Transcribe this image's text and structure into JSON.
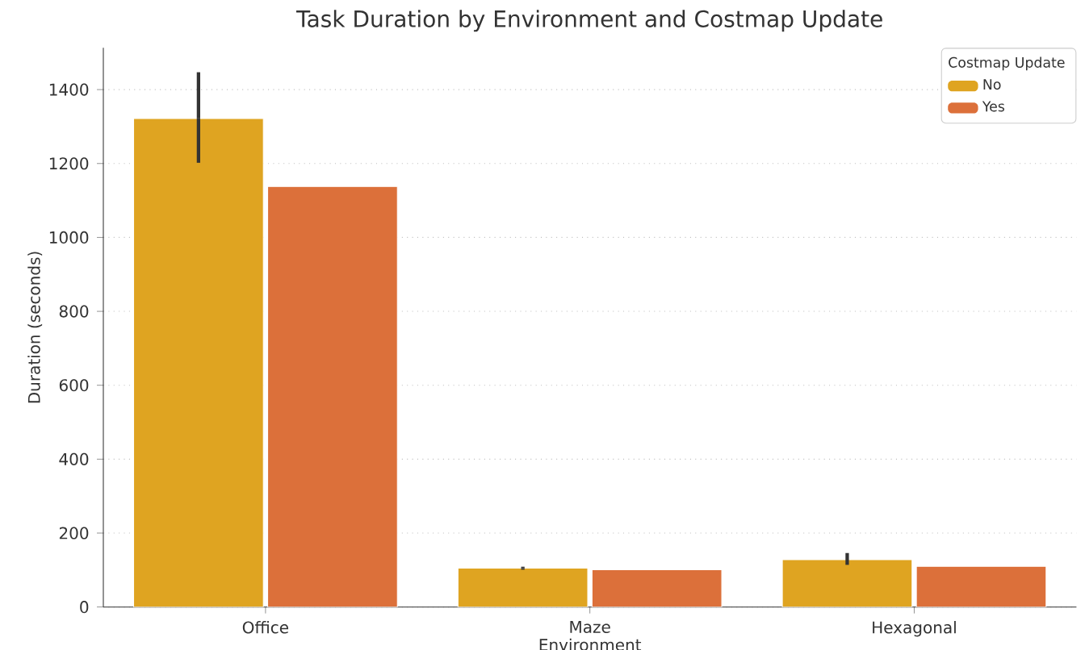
{
  "chart_data": {
    "type": "bar",
    "title": "Task Duration by Environment and Costmap Update",
    "xlabel": "Environment",
    "ylabel": "Duration (seconds)",
    "legend_title": "Costmap Update",
    "categories": [
      "Office",
      "Maze",
      "Hexagonal"
    ],
    "series": [
      {
        "name": "No",
        "color": "#dfa421",
        "values": [
          1322,
          105,
          128
        ],
        "errors": [
          [
            1202,
            1447
          ],
          [
            101,
            109
          ],
          [
            114,
            146
          ]
        ]
      },
      {
        "name": "Yes",
        "color": "#dc703a",
        "values": [
          1138,
          101,
          110
        ]
      }
    ],
    "ylim": [
      0,
      1513
    ],
    "yticks": [
      0,
      200,
      400,
      600,
      800,
      1000,
      1200,
      1400
    ],
    "grid": "y",
    "legend": "top right"
  }
}
